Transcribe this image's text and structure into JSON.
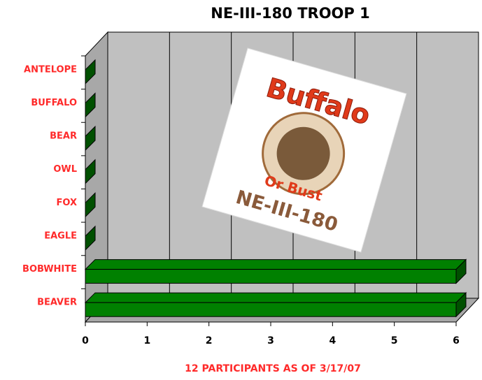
{
  "chart_data": {
    "type": "bar3d",
    "orientation": "horizontal",
    "title": "NE-III-180  TROOP 1",
    "x_label": "12 PARTICIPANTS AS OF 3/17/07",
    "categories": [
      "ANTELOPE",
      "BUFFALO",
      "BEAR",
      "OWL",
      "FOX",
      "EAGLE",
      "BOBWHITE",
      "BEAVER"
    ],
    "values": [
      0,
      0,
      0,
      0,
      0,
      0,
      6,
      6
    ],
    "color": "#008000",
    "xlim": [
      0,
      6
    ],
    "xticks": [
      0,
      1,
      2,
      3,
      4,
      5,
      6
    ],
    "grid": true,
    "annotations": [
      "Buffalo",
      "Or Bust",
      "NE-III-180"
    ]
  }
}
